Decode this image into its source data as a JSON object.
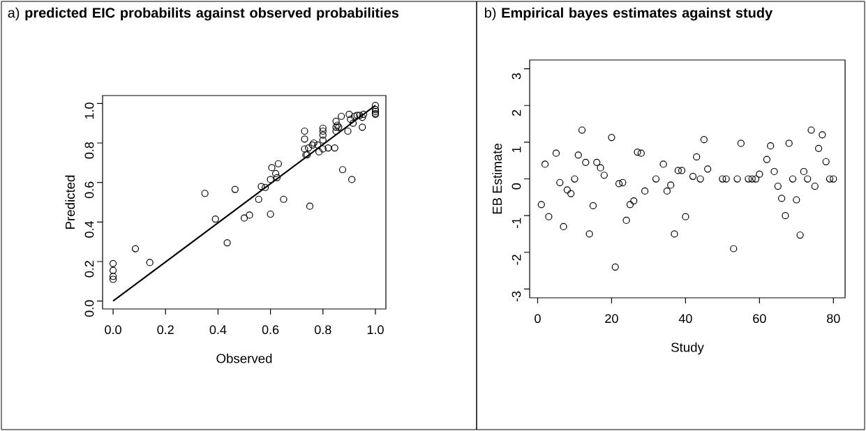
{
  "chart_data": [
    {
      "type": "scatter",
      "title": "a) **predicted EIC probabilits against observed probabilities**",
      "xlabel": "Observed",
      "ylabel": "Predicted",
      "xlim": [
        -0.04,
        1.04
      ],
      "ylim": [
        -0.04,
        1.04
      ],
      "xticks": [
        {
          "value": 0,
          "label": "0.0"
        },
        {
          "value": 0.2,
          "label": "0.2"
        },
        {
          "value": 0.4,
          "label": "0.4"
        },
        {
          "value": 0.6,
          "label": "0.6"
        },
        {
          "value": 0.8,
          "label": "0.8"
        },
        {
          "value": 1,
          "label": "1.0"
        }
      ],
      "yticks": [
        {
          "value": 0,
          "label": "0.0"
        },
        {
          "value": 0.2,
          "label": "0.2"
        },
        {
          "value": 0.4,
          "label": "0.4"
        },
        {
          "value": 0.6,
          "label": "0.6"
        },
        {
          "value": 0.8,
          "label": "0.8"
        },
        {
          "value": 1,
          "label": "1.0"
        }
      ],
      "series": [
        {
          "marker": "circle",
          "color": "#000000",
          "x": [
            0,
            0,
            0,
            0,
            0.085,
            0.14,
            0.35,
            0.39,
            0.435,
            0.465,
            0.5,
            0.52,
            0.555,
            0.565,
            0.58,
            0.6,
            0.6,
            0.605,
            0.62,
            0.625,
            0.63,
            0.65,
            0.73,
            0.73,
            0.73,
            0.735,
            0.74,
            0.745,
            0.75,
            0.76,
            0.765,
            0.78,
            0.785,
            0.8,
            0.8,
            0.8,
            0.8,
            0.8,
            0.82,
            0.845,
            0.85,
            0.85,
            0.85,
            0.855,
            0.86,
            0.87,
            0.875,
            0.895,
            0.9,
            0.905,
            0.91,
            0.915,
            0.92,
            0.93,
            0.94,
            0.95,
            0.95,
            0.955,
            1,
            1,
            1,
            1,
            1
          ],
          "values": [
            0.19,
            0.155,
            0.125,
            0.11,
            0.265,
            0.195,
            0.545,
            0.415,
            0.295,
            0.565,
            0.42,
            0.435,
            0.515,
            0.58,
            0.575,
            0.44,
            0.615,
            0.675,
            0.645,
            0.625,
            0.695,
            0.515,
            0.86,
            0.82,
            0.77,
            0.74,
            0.74,
            0.775,
            0.48,
            0.79,
            0.8,
            0.79,
            0.755,
            0.875,
            0.86,
            0.84,
            0.815,
            0.77,
            0.775,
            0.775,
            0.91,
            0.88,
            0.86,
            0.89,
            0.88,
            0.935,
            0.665,
            0.86,
            0.945,
            0.92,
            0.615,
            0.9,
            0.935,
            0.94,
            0.94,
            0.93,
            0.88,
            0.945,
            0.99,
            0.97,
            0.96,
            0.95,
            0.945
          ]
        },
        {
          "type": "line",
          "marker": "none",
          "line_style": "solid",
          "color": "#000000",
          "x": [
            0,
            1
          ],
          "values": [
            0,
            0.99
          ]
        }
      ]
    },
    {
      "type": "scatter",
      "title": "b) **Empirical bayes estimates against study**",
      "xlabel": "Study",
      "ylabel": "EB Estimate",
      "xlim": [
        -2.16,
        83.16
      ],
      "ylim": [
        -3.24,
        3.24
      ],
      "xticks": [
        0,
        20,
        40,
        60,
        80
      ],
      "yticks": [
        -3,
        -2,
        -1,
        0,
        1,
        2,
        3
      ],
      "series": [
        {
          "marker": "circle",
          "color": "#000000",
          "x": [
            1,
            2,
            3,
            5,
            6,
            7,
            8,
            9,
            10,
            11,
            12,
            13,
            14,
            15,
            16,
            17,
            18,
            20,
            21,
            22,
            23,
            24,
            25,
            26,
            27,
            28,
            29,
            32,
            34,
            35,
            36,
            37,
            38,
            39,
            40,
            42,
            43,
            44,
            45,
            46,
            50,
            51,
            53,
            54,
            55,
            57,
            58,
            59,
            60,
            62,
            63,
            64,
            65,
            66,
            67,
            68,
            69,
            70,
            71,
            72,
            73,
            74,
            75,
            76,
            77,
            78,
            79,
            80
          ],
          "values": [
            -0.7,
            0.4,
            -1.03,
            0.7,
            -0.1,
            -1.3,
            -0.3,
            -0.4,
            0,
            0.65,
            1.33,
            0.45,
            -1.5,
            -0.73,
            0.45,
            0.3,
            0.1,
            1.13,
            -2.4,
            -0.13,
            -0.1,
            -1.13,
            -0.7,
            -0.6,
            0.73,
            0.7,
            -0.33,
            0,
            0.4,
            -0.33,
            -0.17,
            -1.5,
            0.23,
            0.23,
            -1.03,
            0.07,
            0.6,
            0,
            1.07,
            0.27,
            0,
            0,
            -1.9,
            0,
            0.97,
            0,
            0,
            0,
            0.13,
            0.53,
            0.9,
            0.2,
            -0.2,
            -0.53,
            -1,
            0.97,
            0,
            -0.57,
            -1.53,
            0.2,
            0,
            1.33,
            -0.2,
            0.83,
            1.2,
            0.47,
            0,
            0
          ]
        }
      ]
    }
  ]
}
